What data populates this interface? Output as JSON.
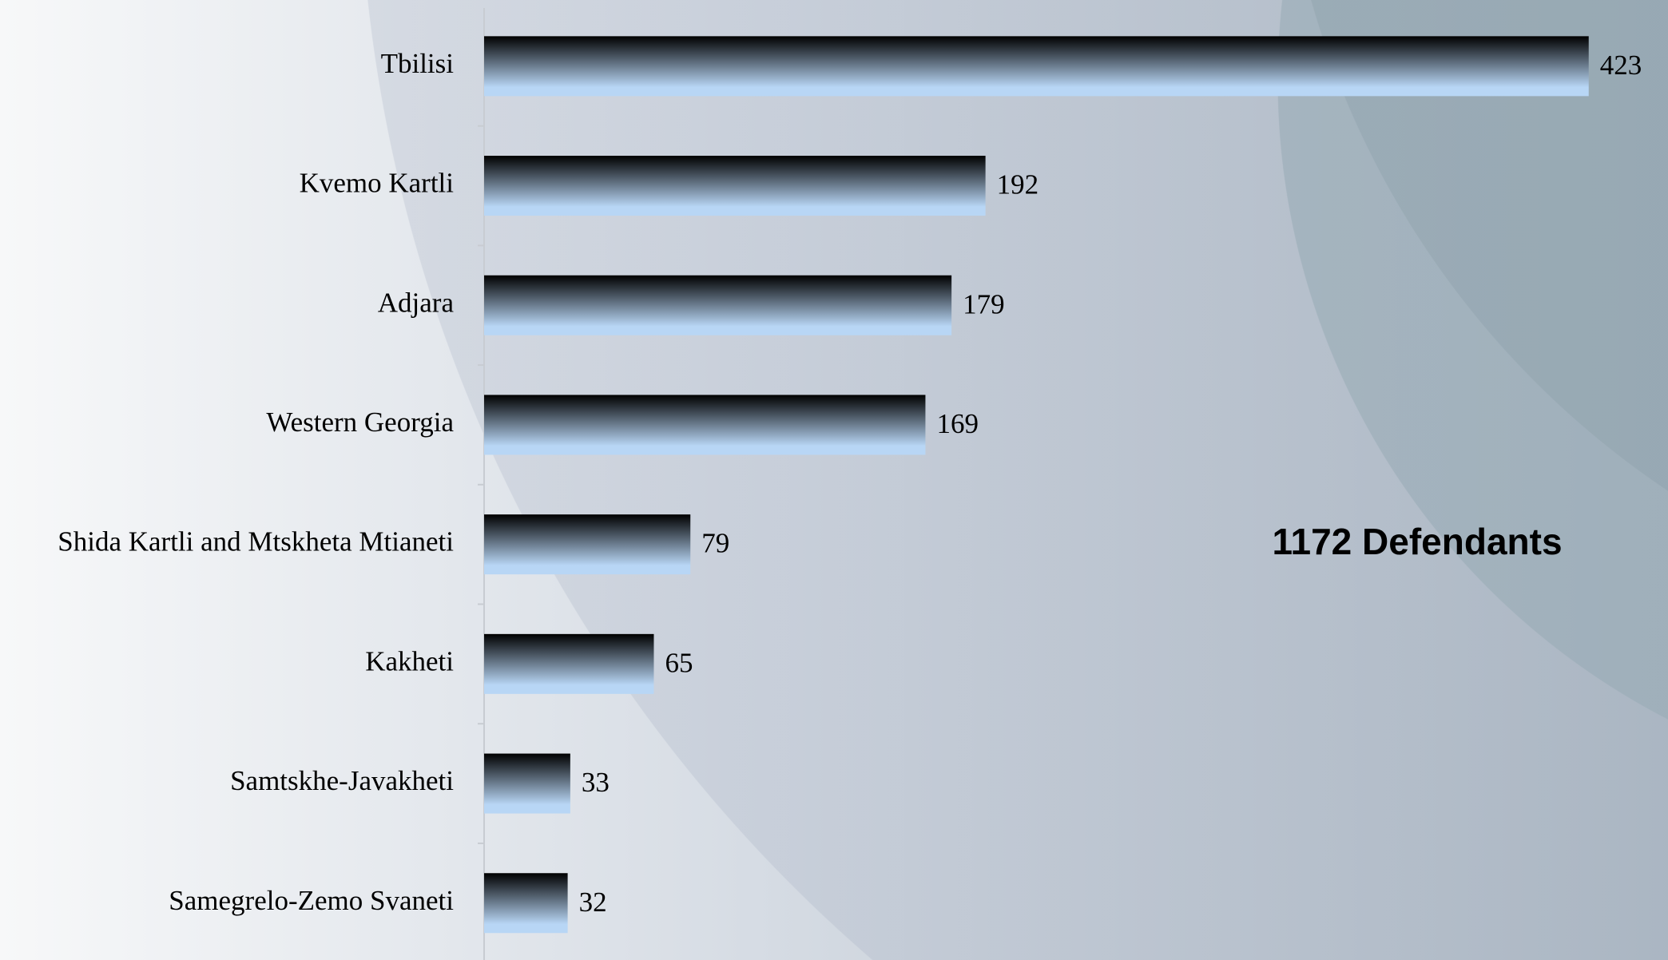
{
  "chart_data": {
    "type": "bar",
    "orientation": "horizontal",
    "categories": [
      "Tbilisi",
      "Kvemo Kartli",
      "Adjara",
      "Western Georgia",
      "Shida Kartli and Mtskheta Mtianeti",
      "Kakheti",
      "Samtskhe-Javakheti",
      "Samegrelo-Zemo Svaneti"
    ],
    "values": [
      423,
      192,
      179,
      169,
      79,
      65,
      33,
      32
    ],
    "xlim": [
      0,
      450
    ],
    "annotation": "1172 Defendants",
    "color": [
      "#000000",
      "#b8d6f5"
    ]
  }
}
